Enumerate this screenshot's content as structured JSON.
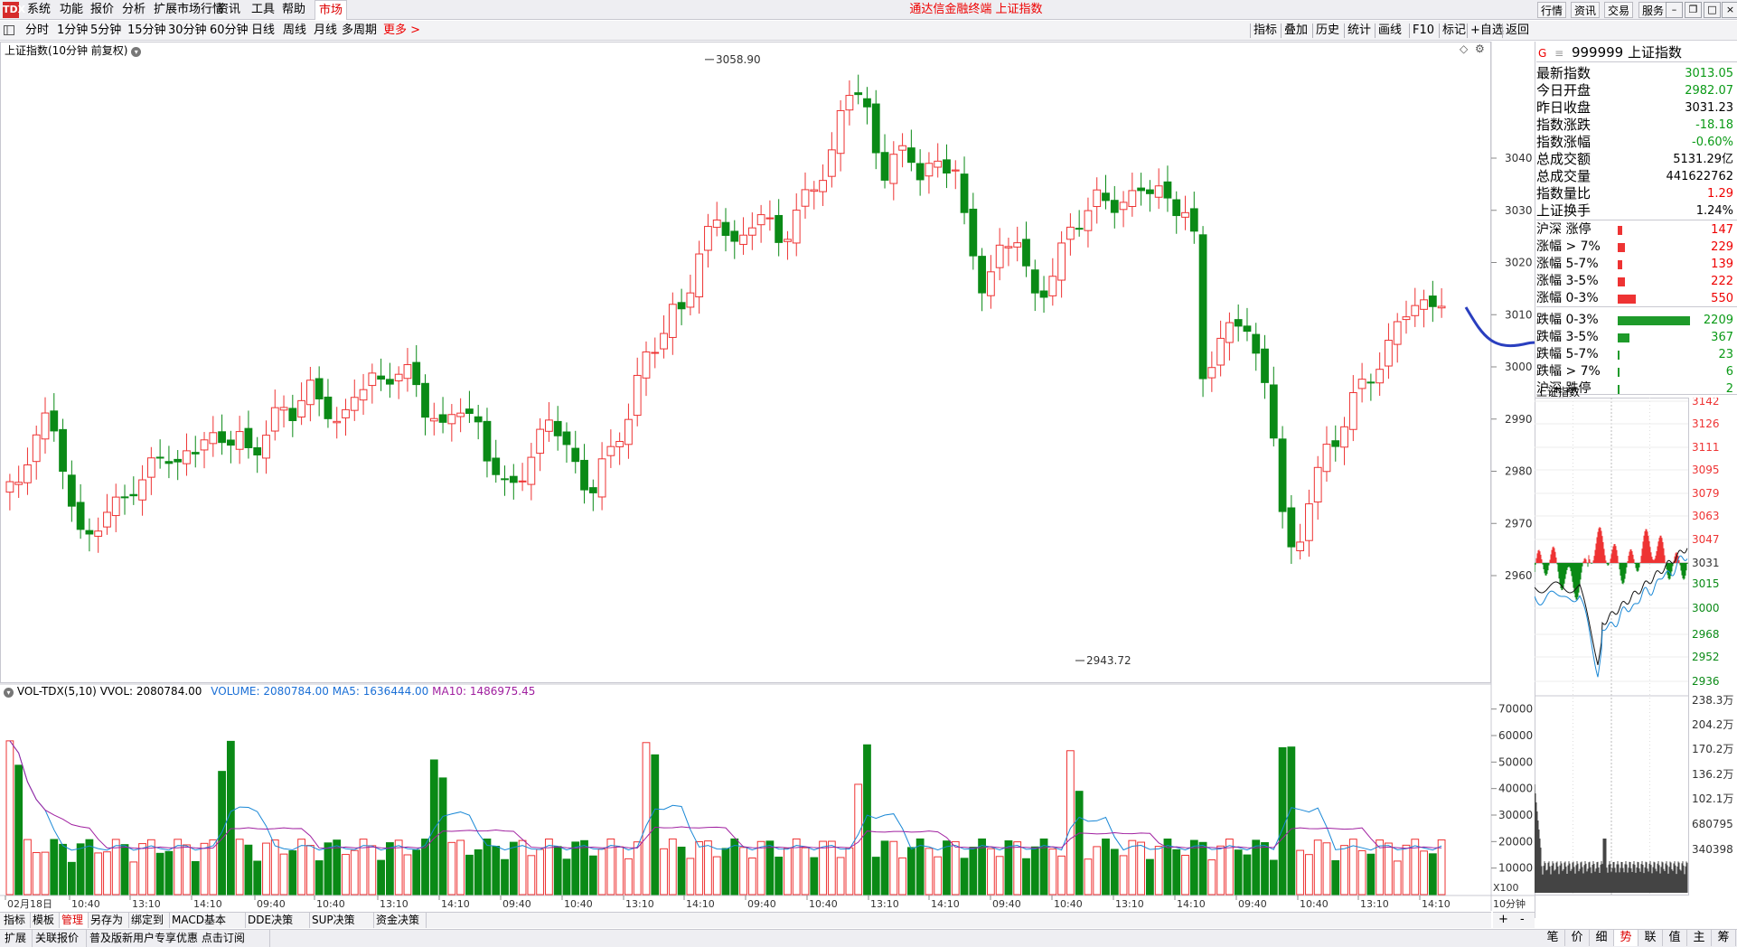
{
  "app": {
    "title": "通达信金融终端 上证指数",
    "logo": "TDX"
  },
  "menu": [
    "系统",
    "功能",
    "报价",
    "分析",
    "扩展市场行情",
    "资讯",
    "工具",
    "帮助"
  ],
  "menu_active": "市场",
  "top_right": [
    "行情",
    "资讯",
    "交易",
    "服务"
  ],
  "window_controls": [
    "minimize-icon",
    "restore-icon",
    "maximize-icon",
    "close-icon"
  ],
  "periods": [
    "分时",
    "1分钟",
    "5分钟",
    "15分钟",
    "30分钟",
    "60分钟",
    "日线",
    "周线",
    "月线",
    "多周期"
  ],
  "periods_more": "更多 >",
  "tools": [
    "指标",
    "叠加",
    "历史",
    "统计",
    "画线",
    "F10",
    "标记",
    "+自选",
    "返回"
  ],
  "chart_title": "上证指数(10分钟 前复权)",
  "high_label": "3058.90",
  "low_label": "2943.72",
  "price_ticks": [
    "3040",
    "3030",
    "3020",
    "3010",
    "3000",
    "2990",
    "2980",
    "2970",
    "2960"
  ],
  "vol": {
    "name": "VOL-TDX(5,10)",
    "vvol": "VVOL: 2080784.00",
    "volume": "VOLUME: 2080784.00",
    "ma5": "MA5: 1636444.00",
    "ma10": "MA10: 1486975.45"
  },
  "vol_ticks": [
    "70000",
    "60000",
    "50000",
    "40000",
    "30000",
    "20000",
    "10000"
  ],
  "vol_unit": "X100",
  "time_labels": [
    "02月18日",
    "10:40",
    "13:10",
    "14:10",
    "09:40",
    "10:40",
    "13:10",
    "14:10",
    "09:40",
    "10:40",
    "13:10",
    "14:10",
    "09:40",
    "10:40",
    "13:10",
    "14:10",
    "09:40",
    "10:40",
    "13:10",
    "14:10",
    "09:40",
    "10:40",
    "13:10",
    "14:10"
  ],
  "chart_period": "10分钟",
  "quote": {
    "code": "999999",
    "name": "上证指数",
    "prefix": "G",
    "rows": [
      {
        "label": "最新指数",
        "value": "3013.05",
        "color": "green"
      },
      {
        "label": "今日开盘",
        "value": "2982.07",
        "color": "green"
      },
      {
        "label": "昨日收盘",
        "value": "3031.23",
        "color": "black"
      },
      {
        "label": "指数涨跌",
        "value": "-18.18",
        "color": "green"
      },
      {
        "label": "指数涨幅",
        "value": "-0.60%",
        "color": "green"
      },
      {
        "label": "总成交额",
        "value": "5131.29亿",
        "color": "black"
      },
      {
        "label": "总成交量",
        "value": "441622762",
        "color": "black"
      },
      {
        "label": "指数量比",
        "value": "1.29",
        "color": "red"
      },
      {
        "label": "上证换手",
        "value": "1.24%",
        "color": "black"
      }
    ]
  },
  "breadth": [
    {
      "label": "沪深 涨停",
      "value": "147",
      "count": 147,
      "color": "red"
    },
    {
      "label": "涨幅 > 7%",
      "value": "229",
      "count": 229,
      "color": "red"
    },
    {
      "label": "涨幅 5-7%",
      "value": "139",
      "count": 139,
      "color": "red"
    },
    {
      "label": "涨幅 3-5%",
      "value": "222",
      "count": 222,
      "color": "red"
    },
    {
      "label": "涨幅 0-3%",
      "value": "550",
      "count": 550,
      "color": "red"
    },
    {
      "label": "跌幅 0-3%",
      "value": "2209",
      "count": 2209,
      "color": "green"
    },
    {
      "label": "跌幅 3-5%",
      "value": "367",
      "count": 367,
      "color": "green"
    },
    {
      "label": "跌幅 5-7%",
      "value": "23",
      "count": 23,
      "color": "green"
    },
    {
      "label": "跌幅 > 7%",
      "value": "6",
      "count": 6,
      "color": "green"
    },
    {
      "label": "沪深 跌停",
      "value": "2",
      "count": 2,
      "color": "green"
    }
  ],
  "mini": {
    "title": "上证指数",
    "price_ticks": [
      "3142",
      "3126",
      "3111",
      "3095",
      "3079",
      "3063",
      "3047",
      "3031",
      "3015",
      "3000",
      "2968",
      "2952",
      "2936"
    ],
    "vol_ticks": [
      "238.3万",
      "204.2万",
      "170.2万",
      "136.2万",
      "102.1万",
      "680795",
      "340398"
    ]
  },
  "bottom_tabs": [
    "指标",
    "模板",
    "管理",
    "另存为",
    "绑定到",
    "MACD基本",
    "DDE决策",
    "SUP决策",
    "资金决策"
  ],
  "bottom_tab_selected": "管理",
  "zoom_controls": [
    "+",
    "-"
  ],
  "status": [
    "扩展",
    "关联报价",
    "普及版新用户专享优惠 点击订阅"
  ],
  "right_tabs": [
    "笔",
    "价",
    "细",
    "势",
    "联",
    "值",
    "主",
    "筹"
  ],
  "right_tab_selected": "势"
}
